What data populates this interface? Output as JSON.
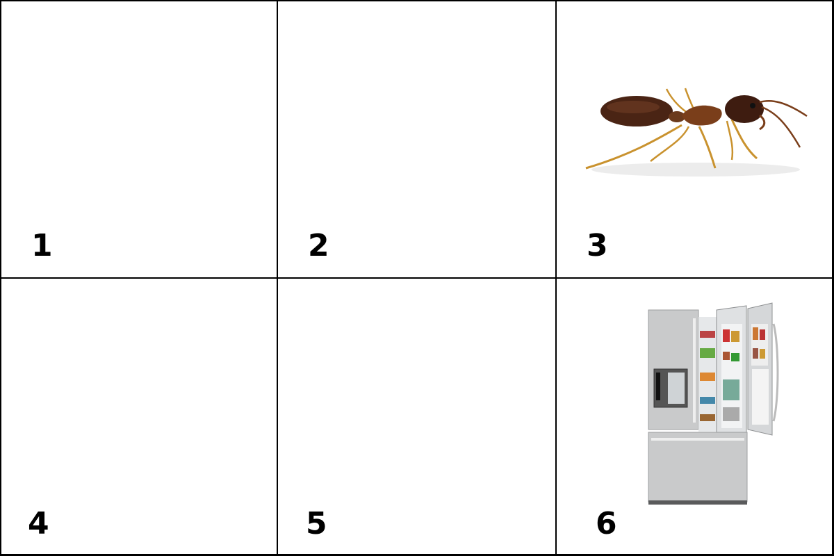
{
  "panels": [
    {
      "label": "1",
      "content": ""
    },
    {
      "label": "2",
      "content": ""
    },
    {
      "label": "3",
      "content": "ant"
    },
    {
      "label": "4",
      "content": ""
    },
    {
      "label": "5",
      "content": ""
    },
    {
      "label": "6",
      "content": "refrigerator"
    }
  ],
  "colors": {
    "border": "#000000",
    "background": "#ffffff",
    "ant_body": "#4a2414",
    "ant_legs": "#c9922e",
    "fridge_steel": "#c9cacb"
  }
}
